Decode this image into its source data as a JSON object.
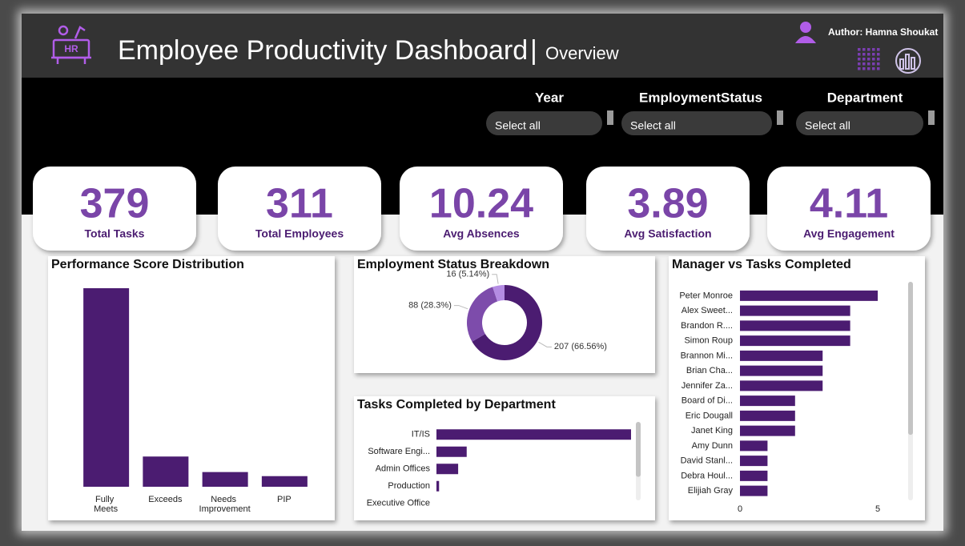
{
  "header": {
    "icon_text": "HR",
    "title": "Employee Productivity Dashboard",
    "separator": "|",
    "subtitle": "Overview",
    "author": "Author: Hamna Shoukat"
  },
  "filters": [
    {
      "label": "Year",
      "value": "Select all"
    },
    {
      "label": "EmploymentStatus",
      "value": "Select all"
    },
    {
      "label": "Department",
      "value": "Select all"
    }
  ],
  "kpis": [
    {
      "value": 379,
      "label": "Total Tasks"
    },
    {
      "value": 311,
      "label": "Total Employees"
    },
    {
      "value": 10.24,
      "label": "Avg Absences"
    },
    {
      "value": 3.89,
      "label": "Avg Satisfaction"
    },
    {
      "value": 4.11,
      "label": "Avg Engagement"
    }
  ],
  "chart_data": [
    {
      "type": "bar",
      "title": "Performance Score Distribution",
      "categories": [
        "Fully Meets",
        "Exceeds",
        "Needs Improvement",
        "PIP"
      ],
      "values": [
        243,
        37,
        18,
        13
      ],
      "color": "#4b1c71"
    },
    {
      "type": "pie",
      "donut": true,
      "title": "Employment Status Breakdown",
      "values": [
        207,
        88,
        16
      ],
      "value_labels": [
        "207 (66.56%)",
        "88 (28.3%)",
        "16 (5.14%)"
      ],
      "colors": [
        "#4b1c71",
        "#7d4cab",
        "#b48ce3"
      ]
    },
    {
      "type": "hbar",
      "title": "Tasks Completed by Department",
      "categories": [
        "IT/IS",
        "Software Engi...",
        "Admin Offices",
        "Production",
        "Executive Office"
      ],
      "values": [
        296,
        46,
        33,
        4,
        0
      ],
      "color": "#4b1c71"
    },
    {
      "type": "hbar",
      "title": "Manager vs Tasks Completed",
      "categories": [
        "Peter Monroe",
        "Alex Sweet...",
        "Brandon R....",
        "Simon Roup",
        "Brannon Mi...",
        "Brian Cha...",
        "Jennifer Za...",
        "Board of Di...",
        "Eric Dougall",
        "Janet King",
        "Amy Dunn",
        "David Stanl...",
        "Debra Houl...",
        "Elijiah Gray"
      ],
      "values": [
        5,
        4,
        4,
        4,
        3,
        3,
        3,
        2,
        2,
        2,
        1,
        1,
        1,
        1
      ],
      "color": "#4b1c71",
      "xlim": [
        0,
        5.9
      ],
      "xticks": [
        0,
        5
      ]
    }
  ]
}
